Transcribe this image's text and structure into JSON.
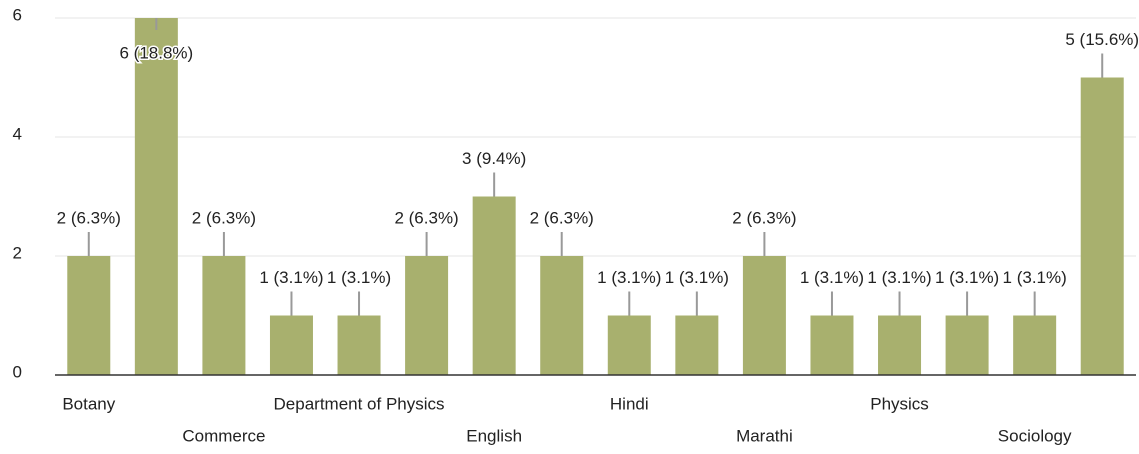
{
  "chart_data": {
    "type": "bar",
    "categories": [
      "Botany",
      null,
      "Commerce",
      null,
      "Department of Physics",
      null,
      "English",
      null,
      "Hindi",
      null,
      "Marathi",
      null,
      "Physics",
      null,
      "Sociology",
      null
    ],
    "values": [
      2,
      6,
      2,
      1,
      1,
      2,
      3,
      2,
      1,
      1,
      2,
      1,
      1,
      1,
      1,
      5
    ],
    "value_labels": [
      "2 (6.3%)",
      "6 (18.8%)",
      "2 (6.3%)",
      "1 (3.1%)",
      "1 (3.1%)",
      "2 (6.3%)",
      "3 (9.4%)",
      "2 (6.3%)",
      "1 (3.1%)",
      "1 (3.1%)",
      "2 (6.3%)",
      "1 (3.1%)",
      "1 (3.1%)",
      "1 (3.1%)",
      "1 (3.1%)",
      "5 (15.6%)"
    ],
    "color": "#a8b06e",
    "ylim": [
      0,
      6
    ],
    "yticks": [
      0,
      2,
      4,
      6
    ],
    "grid": true
  }
}
